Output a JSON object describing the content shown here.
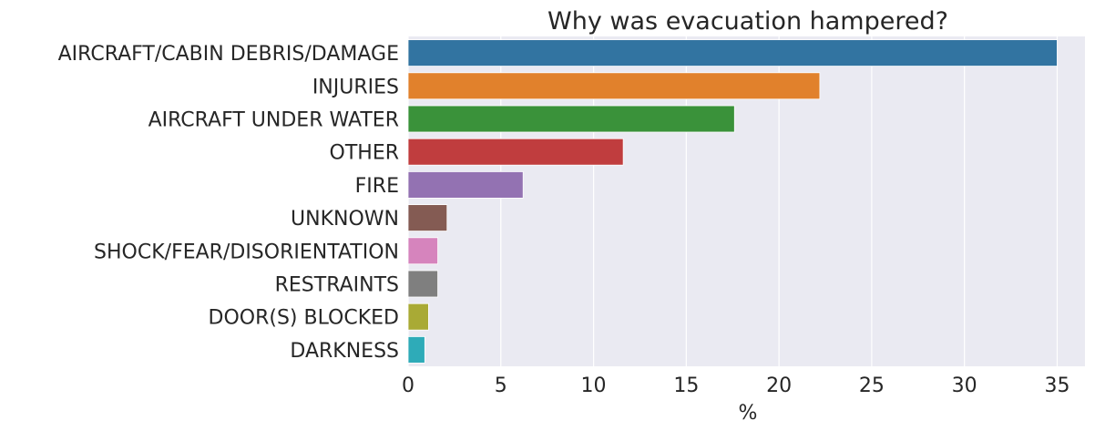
{
  "chart_data": {
    "type": "bar",
    "orientation": "horizontal",
    "title": "Why was evacuation hampered?",
    "xlabel": "%",
    "ylabel": "",
    "xlim": [
      0,
      36.5
    ],
    "xticks": [
      0,
      5,
      10,
      15,
      20,
      25,
      30,
      35
    ],
    "grid": true,
    "categories": [
      "AIRCRAFT/CABIN DEBRIS/DAMAGE",
      "INJURIES",
      "AIRCRAFT UNDER WATER",
      "OTHER",
      "FIRE",
      "UNKNOWN",
      "SHOCK/FEAR/DISORIENTATION",
      "RESTRAINTS",
      "DOOR(S) BLOCKED",
      "DARKNESS"
    ],
    "values": [
      35.0,
      22.2,
      17.6,
      11.6,
      6.2,
      2.1,
      1.6,
      1.6,
      1.1,
      0.9
    ],
    "colors": [
      "#3274a1",
      "#e1812c",
      "#3a923a",
      "#c03d3e",
      "#9372b2",
      "#845b53",
      "#d684bd",
      "#7f7f7f",
      "#a9aa35",
      "#2eabb8"
    ],
    "background": "#eaeaf2",
    "gridline_color": "#ffffff"
  }
}
